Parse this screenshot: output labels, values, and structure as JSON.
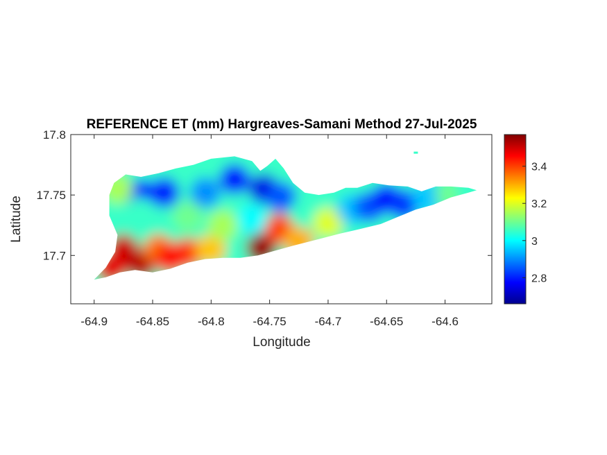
{
  "chart_data": {
    "type": "heatmap",
    "title": "REFERENCE ET (mm) Hargreaves-Samani Method  27-Jul-2025",
    "xlabel": "Longitude",
    "ylabel": "Latitude",
    "xlim": [
      -64.92,
      -64.56
    ],
    "ylim": [
      17.66,
      17.8
    ],
    "xticks": [
      -64.9,
      -64.85,
      -64.8,
      -64.75,
      -64.7,
      -64.65,
      -64.6
    ],
    "xtick_labels": [
      "-64.9",
      "-64.85",
      "-64.8",
      "-64.75",
      "-64.7",
      "-64.65",
      "-64.6"
    ],
    "yticks": [
      17.7,
      17.75,
      17.8
    ],
    "ytick_labels": [
      "17.7",
      "17.75",
      "17.8"
    ],
    "colorbar": {
      "colormap": "jet",
      "clim": [
        2.66,
        3.57
      ],
      "ticks": [
        2.8,
        3.0,
        3.2,
        3.4
      ],
      "tick_labels": [
        "2.8",
        "3",
        "3.2",
        "3.4"
      ]
    },
    "grid": false,
    "outline": [
      [
        -64.9,
        17.68
      ],
      [
        -64.89,
        17.69
      ],
      [
        -64.882,
        17.703
      ],
      [
        -64.88,
        17.717
      ],
      [
        -64.887,
        17.733
      ],
      [
        -64.887,
        17.75
      ],
      [
        -64.883,
        17.76
      ],
      [
        -64.873,
        17.767
      ],
      [
        -64.86,
        17.765
      ],
      [
        -64.845,
        17.768
      ],
      [
        -64.83,
        17.772
      ],
      [
        -64.815,
        17.775
      ],
      [
        -64.8,
        17.78
      ],
      [
        -64.78,
        17.782
      ],
      [
        -64.765,
        17.778
      ],
      [
        -64.758,
        17.77
      ],
      [
        -64.752,
        17.774
      ],
      [
        -64.745,
        17.78
      ],
      [
        -64.738,
        17.772
      ],
      [
        -64.73,
        17.76
      ],
      [
        -64.72,
        17.752
      ],
      [
        -64.708,
        17.75
      ],
      [
        -64.695,
        17.752
      ],
      [
        -64.685,
        17.756
      ],
      [
        -64.675,
        17.756
      ],
      [
        -64.662,
        17.76
      ],
      [
        -64.648,
        17.758
      ],
      [
        -64.632,
        17.757
      ],
      [
        -64.62,
        17.753
      ],
      [
        -64.608,
        17.757
      ],
      [
        -64.595,
        17.757
      ],
      [
        -64.58,
        17.756
      ],
      [
        -64.573,
        17.754
      ],
      [
        -64.58,
        17.752
      ],
      [
        -64.595,
        17.748
      ],
      [
        -64.61,
        17.742
      ],
      [
        -64.625,
        17.738
      ],
      [
        -64.64,
        17.732
      ],
      [
        -64.655,
        17.726
      ],
      [
        -64.672,
        17.722
      ],
      [
        -64.69,
        17.718
      ],
      [
        -64.71,
        17.713
      ],
      [
        -64.73,
        17.708
      ],
      [
        -64.745,
        17.704
      ],
      [
        -64.76,
        17.7
      ],
      [
        -64.775,
        17.698
      ],
      [
        -64.79,
        17.698
      ],
      [
        -64.805,
        17.697
      ],
      [
        -64.82,
        17.694
      ],
      [
        -64.835,
        17.689
      ],
      [
        -64.85,
        17.686
      ],
      [
        -64.865,
        17.688
      ],
      [
        -64.878,
        17.686
      ],
      [
        -64.89,
        17.682
      ],
      [
        -64.9,
        17.68
      ]
    ],
    "regions": [
      {
        "lon": -64.875,
        "lat": 17.705,
        "value": 3.5
      },
      {
        "lon": -64.86,
        "lat": 17.693,
        "value": 3.52
      },
      {
        "lon": -64.885,
        "lat": 17.69,
        "value": 3.48
      },
      {
        "lon": -64.845,
        "lat": 17.705,
        "value": 3.35
      },
      {
        "lon": -64.82,
        "lat": 17.702,
        "value": 3.4
      },
      {
        "lon": -64.835,
        "lat": 17.698,
        "value": 3.45
      },
      {
        "lon": -64.8,
        "lat": 17.705,
        "value": 3.28
      },
      {
        "lon": -64.757,
        "lat": 17.706,
        "value": 3.55
      },
      {
        "lon": -64.742,
        "lat": 17.722,
        "value": 3.4
      },
      {
        "lon": -64.725,
        "lat": 17.712,
        "value": 3.3
      },
      {
        "lon": -64.86,
        "lat": 17.75,
        "value": 2.78
      },
      {
        "lon": -64.84,
        "lat": 17.752,
        "value": 2.8
      },
      {
        "lon": -64.805,
        "lat": 17.752,
        "value": 2.9
      },
      {
        "lon": -64.78,
        "lat": 17.763,
        "value": 2.78
      },
      {
        "lon": -64.755,
        "lat": 17.755,
        "value": 2.75
      },
      {
        "lon": -64.74,
        "lat": 17.748,
        "value": 2.85
      },
      {
        "lon": -64.86,
        "lat": 17.735,
        "value": 3.05
      },
      {
        "lon": -64.82,
        "lat": 17.732,
        "value": 3.1
      },
      {
        "lon": -64.79,
        "lat": 17.725,
        "value": 3.15
      },
      {
        "lon": -64.765,
        "lat": 17.73,
        "value": 3.0
      },
      {
        "lon": -64.72,
        "lat": 17.735,
        "value": 3.05
      },
      {
        "lon": -64.7,
        "lat": 17.727,
        "value": 3.2
      },
      {
        "lon": -64.68,
        "lat": 17.738,
        "value": 2.95
      },
      {
        "lon": -64.665,
        "lat": 17.74,
        "value": 2.85
      },
      {
        "lon": -64.65,
        "lat": 17.747,
        "value": 2.78
      },
      {
        "lon": -64.635,
        "lat": 17.742,
        "value": 2.82
      },
      {
        "lon": -64.615,
        "lat": 17.748,
        "value": 2.95
      },
      {
        "lon": -64.595,
        "lat": 17.75,
        "value": 3.1
      },
      {
        "lon": -64.578,
        "lat": 17.754,
        "value": 3.05
      },
      {
        "lon": -64.88,
        "lat": 17.755,
        "value": 3.15
      }
    ],
    "islet": {
      "lon": -64.625,
      "lat": 17.785,
      "value": 3.05
    }
  }
}
